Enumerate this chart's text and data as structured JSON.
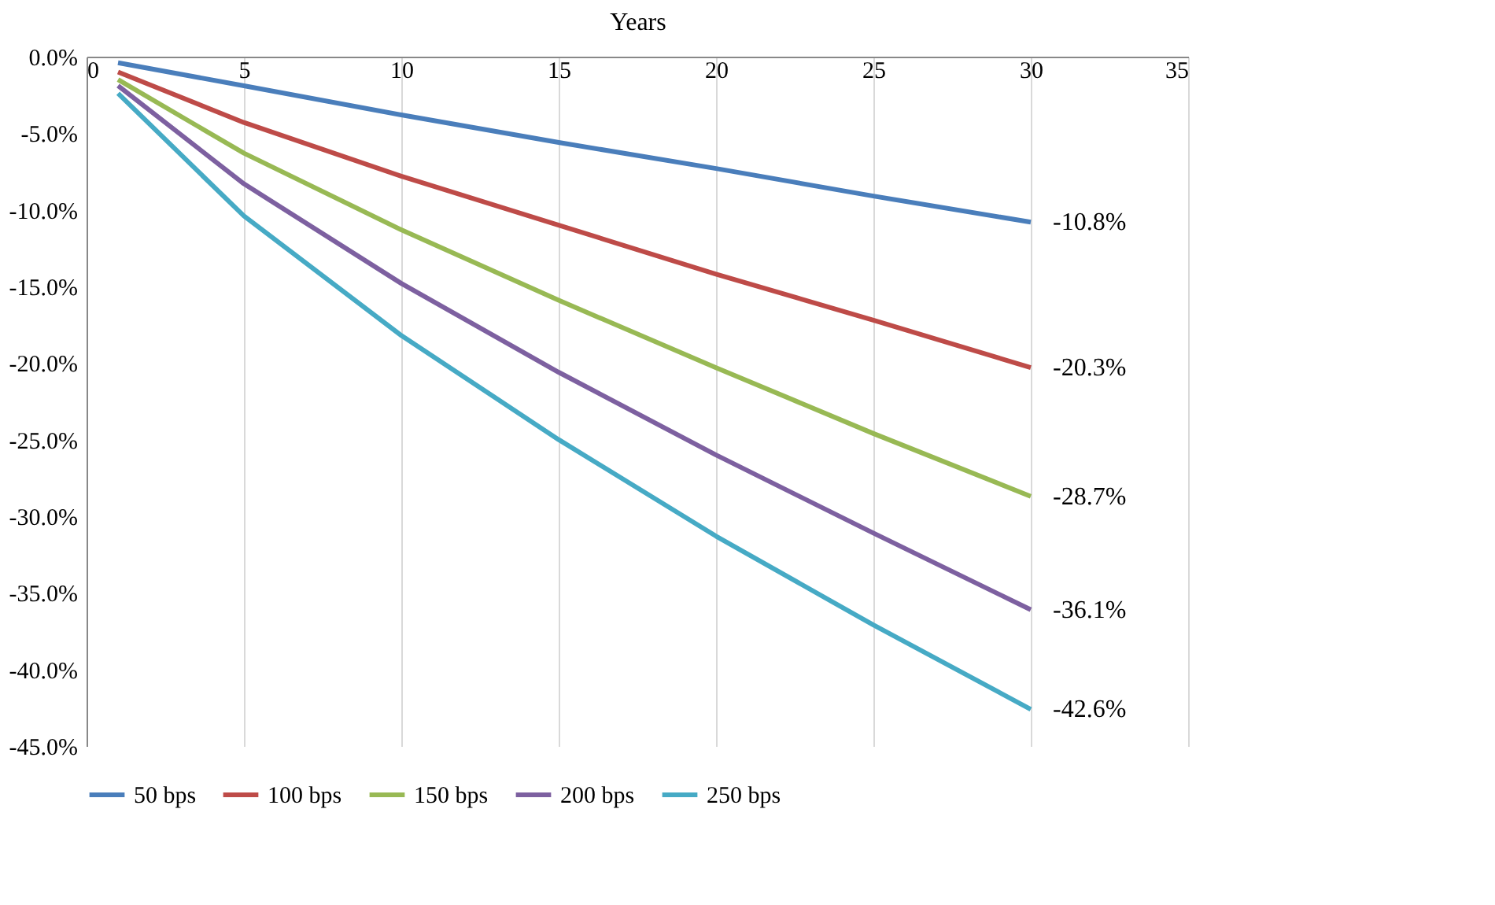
{
  "chart_data": {
    "type": "line",
    "xlabel": "Years",
    "x": [
      1,
      5,
      10,
      15,
      20,
      25,
      30
    ],
    "series": [
      {
        "name": "50 bps",
        "color": "#4a7ebb",
        "values": [
          -0.4,
          -1.9,
          -3.8,
          -5.6,
          -7.3,
          -9.1,
          -10.8
        ],
        "value_labels": [
          null,
          null,
          null,
          null,
          null,
          null,
          "-10.8%"
        ]
      },
      {
        "name": "100 bps",
        "color": "#be4b48",
        "values": [
          -1.0,
          -4.3,
          -7.8,
          -11.0,
          -14.2,
          -17.2,
          -20.3
        ],
        "value_labels": [
          null,
          null,
          null,
          null,
          null,
          null,
          "-20.3%"
        ]
      },
      {
        "name": "150 bps",
        "color": "#98b954",
        "values": [
          -1.5,
          -6.3,
          -11.3,
          -15.9,
          -20.3,
          -24.6,
          -28.7
        ],
        "value_labels": [
          null,
          null,
          null,
          null,
          null,
          null,
          "-28.7%"
        ]
      },
      {
        "name": "200 bps",
        "color": "#7d60a0",
        "values": [
          -1.9,
          -8.3,
          -14.8,
          -20.6,
          -26.0,
          -31.1,
          -36.1
        ],
        "value_labels": [
          null,
          null,
          null,
          null,
          null,
          null,
          "-36.1%"
        ]
      },
      {
        "name": "250 bps",
        "color": "#46aac5",
        "values": [
          -2.4,
          -10.4,
          -18.2,
          -25.0,
          -31.3,
          -37.1,
          -42.6
        ],
        "value_labels": [
          null,
          null,
          null,
          null,
          null,
          null,
          "-42.6%"
        ]
      }
    ],
    "xlim": [
      0,
      35
    ],
    "xticks": [
      0,
      5,
      10,
      15,
      20,
      25,
      30,
      35
    ],
    "ylim": [
      -45,
      0
    ],
    "yticks": [
      {
        "value": 0,
        "label": "0.0%"
      },
      {
        "value": -5,
        "label": "-5.0%"
      },
      {
        "value": -10,
        "label": "-10.0%"
      },
      {
        "value": -15,
        "label": "-15.0%"
      },
      {
        "value": -20,
        "label": "-20.0%"
      },
      {
        "value": -25,
        "label": "-25.0%"
      },
      {
        "value": -30,
        "label": "-30.0%"
      },
      {
        "value": -35,
        "label": "-35.0%"
      },
      {
        "value": -40,
        "label": "-40.0%"
      },
      {
        "value": -45,
        "label": "-45.0%"
      }
    ],
    "grid": "x",
    "legend": "bottom",
    "marker": "none",
    "line_style": "solid"
  }
}
